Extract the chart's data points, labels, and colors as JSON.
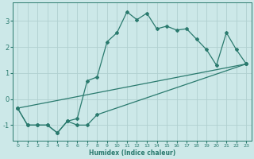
{
  "xlabel": "Humidex (Indice chaleur)",
  "bg_color": "#cce8e8",
  "grid_color": "#b0d0d0",
  "line_color": "#2a7a6e",
  "xlim": [
    -0.5,
    23.5
  ],
  "ylim": [
    -1.6,
    3.7
  ],
  "yticks": [
    -1,
    0,
    1,
    2,
    3
  ],
  "xticks": [
    0,
    1,
    2,
    3,
    4,
    5,
    6,
    7,
    8,
    9,
    10,
    11,
    12,
    13,
    14,
    15,
    16,
    17,
    18,
    19,
    20,
    21,
    22,
    23
  ],
  "line1_x": [
    0,
    1,
    2,
    3,
    4,
    5,
    6,
    7,
    8,
    9,
    10,
    11,
    12,
    13,
    14,
    15,
    16,
    17,
    18,
    19,
    20,
    21,
    22,
    23
  ],
  "line1_y": [
    -0.35,
    -1.0,
    -1.0,
    -1.0,
    -1.3,
    -0.85,
    -0.75,
    0.7,
    0.85,
    2.2,
    2.55,
    3.35,
    3.05,
    3.3,
    2.7,
    2.8,
    2.65,
    2.7,
    2.3,
    1.9,
    1.3,
    2.55,
    1.9,
    1.35
  ],
  "line2_x": [
    0,
    1,
    2,
    3,
    4,
    5,
    6,
    7,
    8,
    23
  ],
  "line2_y": [
    -0.35,
    -1.0,
    -1.0,
    -1.0,
    -1.3,
    -0.85,
    -1.0,
    -1.0,
    -0.6,
    1.35
  ],
  "line3_x": [
    0,
    23
  ],
  "line3_y": [
    -0.35,
    1.35
  ]
}
